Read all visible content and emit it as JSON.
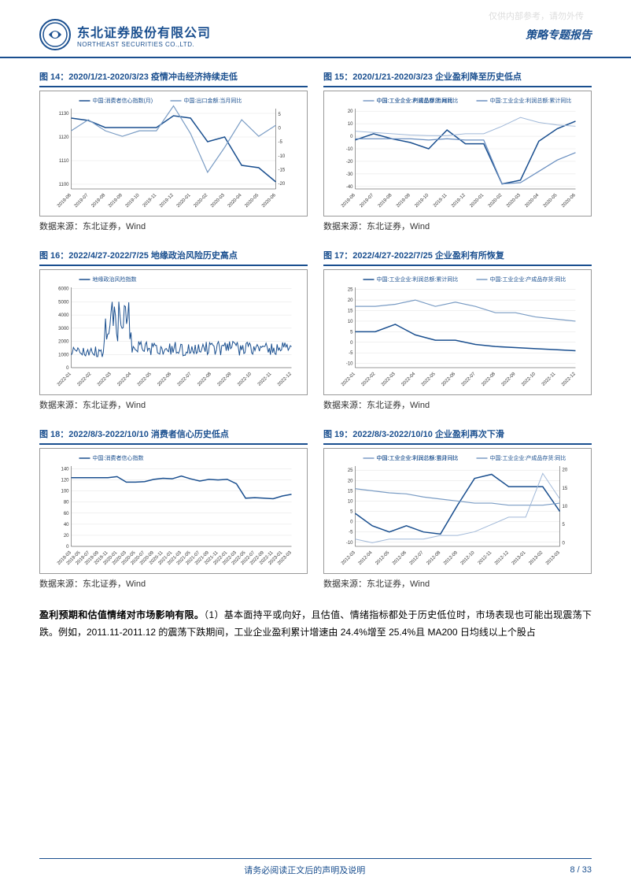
{
  "watermark": "仅供内部参考，请勿外传",
  "header": {
    "company_cn": "东北证券股份有限公司",
    "company_en": "NORTHEAST SECURITIES CO.,LTD.",
    "report_type": "策略专题报告"
  },
  "charts": {
    "c14": {
      "title": "图 14：2020/1/21-2020/3/23 疫情冲击经济持续走低",
      "type": "line",
      "legends": [
        "中国:消费者信心指数(月)",
        "中国:出口金额:当月同比"
      ],
      "x_labels": [
        "2019-06",
        "2019-07",
        "2019-08",
        "2019-09",
        "2019-10",
        "2019-11",
        "2019-12",
        "2020-01",
        "2020-02",
        "2020-03",
        "2020-04",
        "2020-05",
        "2020-06"
      ],
      "y_left": {
        "ticks": [
          1100,
          1110,
          1120,
          1130
        ],
        "lim": [
          1098,
          1132
        ]
      },
      "y_right": {
        "ticks": [
          -20,
          -15,
          -10,
          -5,
          0,
          5
        ],
        "lim": [
          -22,
          7
        ]
      },
      "series": [
        {
          "color": "#1a4f8f",
          "width": 1.5,
          "values": [
            126,
            125.5,
            124,
            124,
            124,
            124,
            126.5,
            126,
            121,
            122,
            116,
            115.5,
            112.5
          ],
          "axis": "left",
          "scale": [
            111,
            128
          ]
        },
        {
          "color": "#7a9cc4",
          "width": 1.2,
          "values": [
            -1,
            3,
            -1,
            -3,
            -1,
            -1,
            8,
            -2,
            -16,
            -7,
            3,
            -3,
            1
          ],
          "axis": "right"
        }
      ],
      "line_colors": [
        "#1a4f8f",
        "#7a9cc4"
      ],
      "background": "#ffffff",
      "grid_color": "#cccccc"
    },
    "c15": {
      "title": "图 15：2020/1/21-2020/3/23 企业盈利降至历史低点",
      "type": "line",
      "legends": [
        "中国:工业企业:利润总额:当月同比",
        "中国:工业企业:利润总额:累计同比",
        "中国:工业企业:产成品存货:同比"
      ],
      "x_labels": [
        "2019-06",
        "2019-07",
        "2019-08",
        "2019-09",
        "2019-10",
        "2019-11",
        "2019-12",
        "2020-01",
        "2020-02",
        "2020-03",
        "2020-04",
        "2020-05",
        "2020-06"
      ],
      "y": {
        "ticks": [
          -40,
          -30,
          -20,
          -10,
          0,
          10,
          20
        ],
        "lim": [
          -42,
          22
        ]
      },
      "series": [
        {
          "color": "#1a4f8f",
          "width": 1.5,
          "values": [
            -3,
            2,
            -2,
            -5,
            -10,
            5,
            -6,
            -6,
            -38,
            -35,
            -4,
            6,
            12
          ]
        },
        {
          "color": "#6a8fc0",
          "width": 1.2,
          "values": [
            -2,
            -2,
            -2,
            -2,
            -3,
            -2,
            -3,
            -3,
            -38,
            -37,
            -28,
            -19,
            -13
          ]
        },
        {
          "color": "#a0b8d8",
          "width": 1.0,
          "values": [
            4,
            3,
            2,
            1,
            0.5,
            0.5,
            2,
            2,
            8,
            15,
            11,
            9,
            8
          ]
        }
      ],
      "line_colors": [
        "#1a4f8f",
        "#6a8fc0",
        "#a0b8d8"
      ],
      "background": "#ffffff",
      "grid_color": "#cccccc"
    },
    "c16": {
      "title": "图 16：2022/4/27-2022/7/25 地缘政治风险历史高点",
      "type": "line",
      "legends": [
        "地缘政治风险指数"
      ],
      "x_labels": [
        "2022-01",
        "2022-02",
        "2022-03",
        "2022-04",
        "2022-05",
        "2022-06",
        "2022-07",
        "2022-08",
        "2022-09",
        "2022-10",
        "2022-11",
        "2022-12"
      ],
      "y": {
        "ticks": [
          0,
          1000,
          2000,
          3000,
          4000,
          5000,
          6000
        ],
        "lim": [
          0,
          6100
        ]
      },
      "series": [
        {
          "color": "#1a4f8f",
          "width": 1.0,
          "noisy": true
        }
      ],
      "line_colors": [
        "#1a4f8f"
      ],
      "background": "#ffffff",
      "grid_color": "#cccccc"
    },
    "c17": {
      "title": "图 17：2022/4/27-2022/7/25 企业盈利有所恢复",
      "type": "line",
      "legends": [
        "中国:工业企业:利润总额:累计同比",
        "中国:工业企业:产成品存货:同比"
      ],
      "x_labels": [
        "2022-01",
        "2022-02",
        "2022-03",
        "2022-04",
        "2022-05",
        "2022-06",
        "2022-07",
        "2022-08",
        "2022-09",
        "2022-10",
        "2022-11",
        "2022-12"
      ],
      "y": {
        "ticks": [
          -10,
          -5,
          0,
          5,
          10,
          15,
          20,
          25
        ],
        "lim": [
          -12,
          26
        ]
      },
      "series": [
        {
          "color": "#1a4f8f",
          "width": 1.5,
          "values": [
            5,
            5,
            8.5,
            3.5,
            1,
            1,
            -1,
            -2,
            -2.5,
            -3,
            -3.5,
            -4
          ]
        },
        {
          "color": "#7a9cc4",
          "width": 1.2,
          "values": [
            17,
            17,
            18,
            20,
            17,
            19,
            17,
            14,
            14,
            12,
            11,
            10
          ]
        }
      ],
      "line_colors": [
        "#1a4f8f",
        "#7a9cc4"
      ],
      "background": "#ffffff",
      "grid_color": "#cccccc"
    },
    "c18": {
      "title": "图 18：2022/8/3-2022/10/10 消费者信心历史低点",
      "type": "line",
      "legends": [
        "中国:消费者信心指数"
      ],
      "x_labels": [
        "2019-03",
        "2019-05",
        "2019-07",
        "2019-09",
        "2019-11",
        "2020-01",
        "2020-03",
        "2020-05",
        "2020-07",
        "2020-09",
        "2020-11",
        "2021-01",
        "2021-03",
        "2021-05",
        "2021-07",
        "2021-09",
        "2021-11",
        "2022-01",
        "2022-03",
        "2022-05",
        "2022-07",
        "2022-09",
        "2022-11",
        "2023-01",
        "2023-03"
      ],
      "y": {
        "ticks": [
          0,
          20,
          40,
          60,
          80,
          100,
          120,
          140
        ],
        "lim": [
          0,
          145
        ]
      },
      "series": [
        {
          "color": "#1a4f8f",
          "width": 1.5,
          "values": [
            124,
            124,
            124,
            124,
            124,
            126,
            116,
            116,
            117,
            121,
            123,
            122,
            127,
            122,
            118,
            121,
            120,
            121,
            113,
            87,
            88,
            87,
            86,
            91,
            94
          ]
        }
      ],
      "line_colors": [
        "#1a4f8f"
      ],
      "background": "#ffffff",
      "grid_color": "#cccccc"
    },
    "c19": {
      "title": "图 19：2022/8/3-2022/10/10 企业盈利再次下滑",
      "type": "line",
      "legends": [
        "中国:工业企业:利润总额:当月同比",
        "中国:工业企业:产成品存货:同比",
        "中国:工业企业:利润总额:累计同比"
      ],
      "x_labels": [
        "2012-03",
        "2012-04",
        "2012-05",
        "2012-06",
        "2012-07",
        "2012-08",
        "2012-09",
        "2012-10",
        "2012-11",
        "2012-12",
        "2013-01",
        "2013-02",
        "2013-03"
      ],
      "y_left": {
        "ticks": [
          -10,
          -5,
          0,
          5,
          10,
          15,
          20,
          25
        ],
        "lim": [
          -12,
          27
        ]
      },
      "y_right": {
        "ticks": [
          0.0,
          5.0,
          10.0,
          15.0,
          20.0
        ],
        "lim": [
          -1,
          21
        ]
      },
      "series": [
        {
          "color": "#1a4f8f",
          "width": 1.5,
          "values": [
            4,
            -2,
            -5,
            -2,
            -5,
            -6,
            8,
            21,
            23,
            17,
            17,
            17,
            5
          ],
          "axis": "left"
        },
        {
          "color": "#7a9cc4",
          "width": 1.2,
          "values": [
            16,
            15,
            14,
            13.5,
            12,
            11,
            10,
            9,
            9,
            8,
            8,
            8,
            9
          ],
          "axis": "left"
        },
        {
          "color": "#a0b8d8",
          "width": 1.0,
          "values": [
            1,
            0,
            1,
            1,
            1,
            2,
            2,
            3,
            5,
            7,
            7,
            19,
            12
          ],
          "axis": "right"
        }
      ],
      "line_colors": [
        "#1a4f8f",
        "#7a9cc4",
        "#a0b8d8"
      ],
      "background": "#ffffff",
      "grid_color": "#cccccc"
    }
  },
  "source_text": "数据来源：东北证券，Wind",
  "body": {
    "p1": "盈利预期和估值情绪对市场影响有限。（1）基本面持平或向好，且估值、情绪指标都处于历史低位时，市场表现也可能出现震荡下跌。例如，2011.11-2011.12 的震荡下跌期间，工业企业盈利累计增速由 24.4%增至 25.4%且 MA200 日均线以上个股占"
  },
  "footer": {
    "disclaimer": "请务必阅读正文后的声明及说明",
    "page": "8 / 33"
  }
}
